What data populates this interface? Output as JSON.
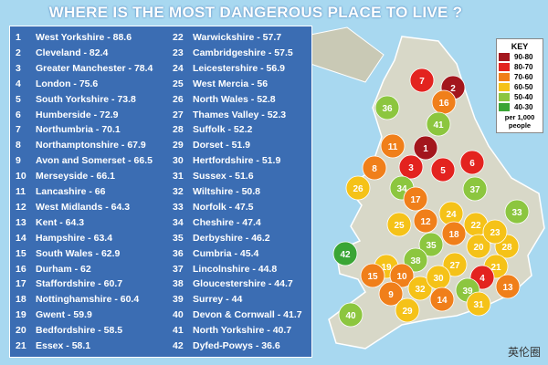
{
  "title": "WHERE IS THE MOST DANGEROUS PLACE TO LIVE ?",
  "list": [
    {
      "rank": 1,
      "text": "West Yorkshire - 88.6"
    },
    {
      "rank": 2,
      "text": "Cleveland - 82.4"
    },
    {
      "rank": 3,
      "text": "Greater Manchester - 78.4"
    },
    {
      "rank": 4,
      "text": "London - 75.6"
    },
    {
      "rank": 5,
      "text": "South Yorkshire - 73.8"
    },
    {
      "rank": 6,
      "text": "Humberside - 72.9"
    },
    {
      "rank": 7,
      "text": "Northumbria - 70.1"
    },
    {
      "rank": 8,
      "text": "Northamptonshire - 67.9"
    },
    {
      "rank": 9,
      "text": "Avon and Somerset - 66.5"
    },
    {
      "rank": 10,
      "text": "Merseyside - 66.1"
    },
    {
      "rank": 11,
      "text": "Lancashire - 66"
    },
    {
      "rank": 12,
      "text": "West Midlands - 64.3"
    },
    {
      "rank": 13,
      "text": "Kent - 64.3"
    },
    {
      "rank": 14,
      "text": "Hampshire - 63.4"
    },
    {
      "rank": 15,
      "text": "South Wales - 62.9"
    },
    {
      "rank": 16,
      "text": "Durham - 62"
    },
    {
      "rank": 17,
      "text": "Staffordshire - 60.7"
    },
    {
      "rank": 18,
      "text": "Nottinghamshire - 60.4"
    },
    {
      "rank": 19,
      "text": "Gwent - 59.9"
    },
    {
      "rank": 20,
      "text": "Bedfordshire - 58.5"
    },
    {
      "rank": 21,
      "text": "Essex - 58.1"
    },
    {
      "rank": 22,
      "text": "Warwickshire - 57.7"
    },
    {
      "rank": 23,
      "text": "Cambridgeshire - 57.5"
    },
    {
      "rank": 24,
      "text": "Leicestershire - 56.9"
    },
    {
      "rank": 25,
      "text": "West Mercia - 56"
    },
    {
      "rank": 26,
      "text": "North Wales - 52.8"
    },
    {
      "rank": 27,
      "text": "Thames Valley - 52.3"
    },
    {
      "rank": 28,
      "text": "Suffolk - 52.2"
    },
    {
      "rank": 29,
      "text": "Dorset - 51.9"
    },
    {
      "rank": 30,
      "text": "Hertfordshire - 51.9"
    },
    {
      "rank": 31,
      "text": "Sussex - 51.6"
    },
    {
      "rank": 32,
      "text": "Wiltshire - 50.8"
    },
    {
      "rank": 33,
      "text": "Norfolk - 47.5"
    },
    {
      "rank": 34,
      "text": "Cheshire - 47.4"
    },
    {
      "rank": 35,
      "text": "Derbyshire - 46.2"
    },
    {
      "rank": 36,
      "text": "Cumbria - 45.4"
    },
    {
      "rank": 37,
      "text": "Lincolnshire - 44.8"
    },
    {
      "rank": 38,
      "text": "Gloucestershire - 44.7"
    },
    {
      "rank": 39,
      "text": "Surrey - 44"
    },
    {
      "rank": 40,
      "text": "Devon & Cornwall - 41.7"
    },
    {
      "rank": 41,
      "text": "North Yorkshire - 40.7"
    },
    {
      "rank": 42,
      "text": "Dyfed-Powys - 36.6"
    }
  ],
  "key": {
    "title": "KEY",
    "items": [
      {
        "label": "90-80",
        "color": "#a3161d"
      },
      {
        "label": "80-70",
        "color": "#e3231f"
      },
      {
        "label": "70-60",
        "color": "#f07f1a"
      },
      {
        "label": "60-50",
        "color": "#f5c218"
      },
      {
        "label": "50-40",
        "color": "#8cc63f"
      },
      {
        "label": "40-30",
        "color": "#3aa535"
      }
    ],
    "note": "per 1,000 people"
  },
  "map": {
    "regions": [
      {
        "label": 7,
        "color": "#e3231f"
      },
      {
        "label": 2,
        "color": "#a3161d"
      },
      {
        "label": 16,
        "color": "#f07f1a"
      },
      {
        "label": 36,
        "color": "#8cc63f"
      },
      {
        "label": 41,
        "color": "#8cc63f"
      },
      {
        "label": 11,
        "color": "#f07f1a"
      },
      {
        "label": 1,
        "color": "#a3161d"
      },
      {
        "label": 3,
        "color": "#e3231f"
      },
      {
        "label": 5,
        "color": "#e3231f"
      },
      {
        "label": 6,
        "color": "#e3231f"
      },
      {
        "label": 8,
        "color": "#f07f1a"
      },
      {
        "label": 34,
        "color": "#8cc63f"
      },
      {
        "label": 37,
        "color": "#8cc63f"
      },
      {
        "label": 26,
        "color": "#f5c218"
      },
      {
        "label": 17,
        "color": "#f07f1a"
      },
      {
        "label": 12,
        "color": "#f07f1a"
      },
      {
        "label": 24,
        "color": "#f5c218"
      },
      {
        "label": 33,
        "color": "#8cc63f"
      },
      {
        "label": 25,
        "color": "#f5c218"
      },
      {
        "label": 22,
        "color": "#f5c218"
      },
      {
        "label": 18,
        "color": "#f07f1a"
      },
      {
        "label": 20,
        "color": "#f5c218"
      },
      {
        "label": 28,
        "color": "#f5c218"
      },
      {
        "label": 35,
        "color": "#8cc63f"
      },
      {
        "label": 38,
        "color": "#8cc63f"
      },
      {
        "label": 27,
        "color": "#f5c218"
      },
      {
        "label": 21,
        "color": "#f5c218"
      },
      {
        "label": 4,
        "color": "#e3231f"
      },
      {
        "label": 42,
        "color": "#3aa535"
      },
      {
        "label": 19,
        "color": "#f5c218"
      },
      {
        "label": 15,
        "color": "#f07f1a"
      },
      {
        "label": 10,
        "color": "#f07f1a"
      },
      {
        "label": 9,
        "color": "#f07f1a"
      },
      {
        "label": 32,
        "color": "#f5c218"
      },
      {
        "label": 30,
        "color": "#f5c218"
      },
      {
        "label": 14,
        "color": "#f07f1a"
      },
      {
        "label": 39,
        "color": "#8cc63f"
      },
      {
        "label": 31,
        "color": "#f5c218"
      },
      {
        "label": 23,
        "color": "#f5c218"
      },
      {
        "label": 13,
        "color": "#f07f1a"
      },
      {
        "label": 29,
        "color": "#f5c218"
      },
      {
        "label": 40,
        "color": "#8cc63f"
      }
    ]
  },
  "watermark": "英伦圈"
}
